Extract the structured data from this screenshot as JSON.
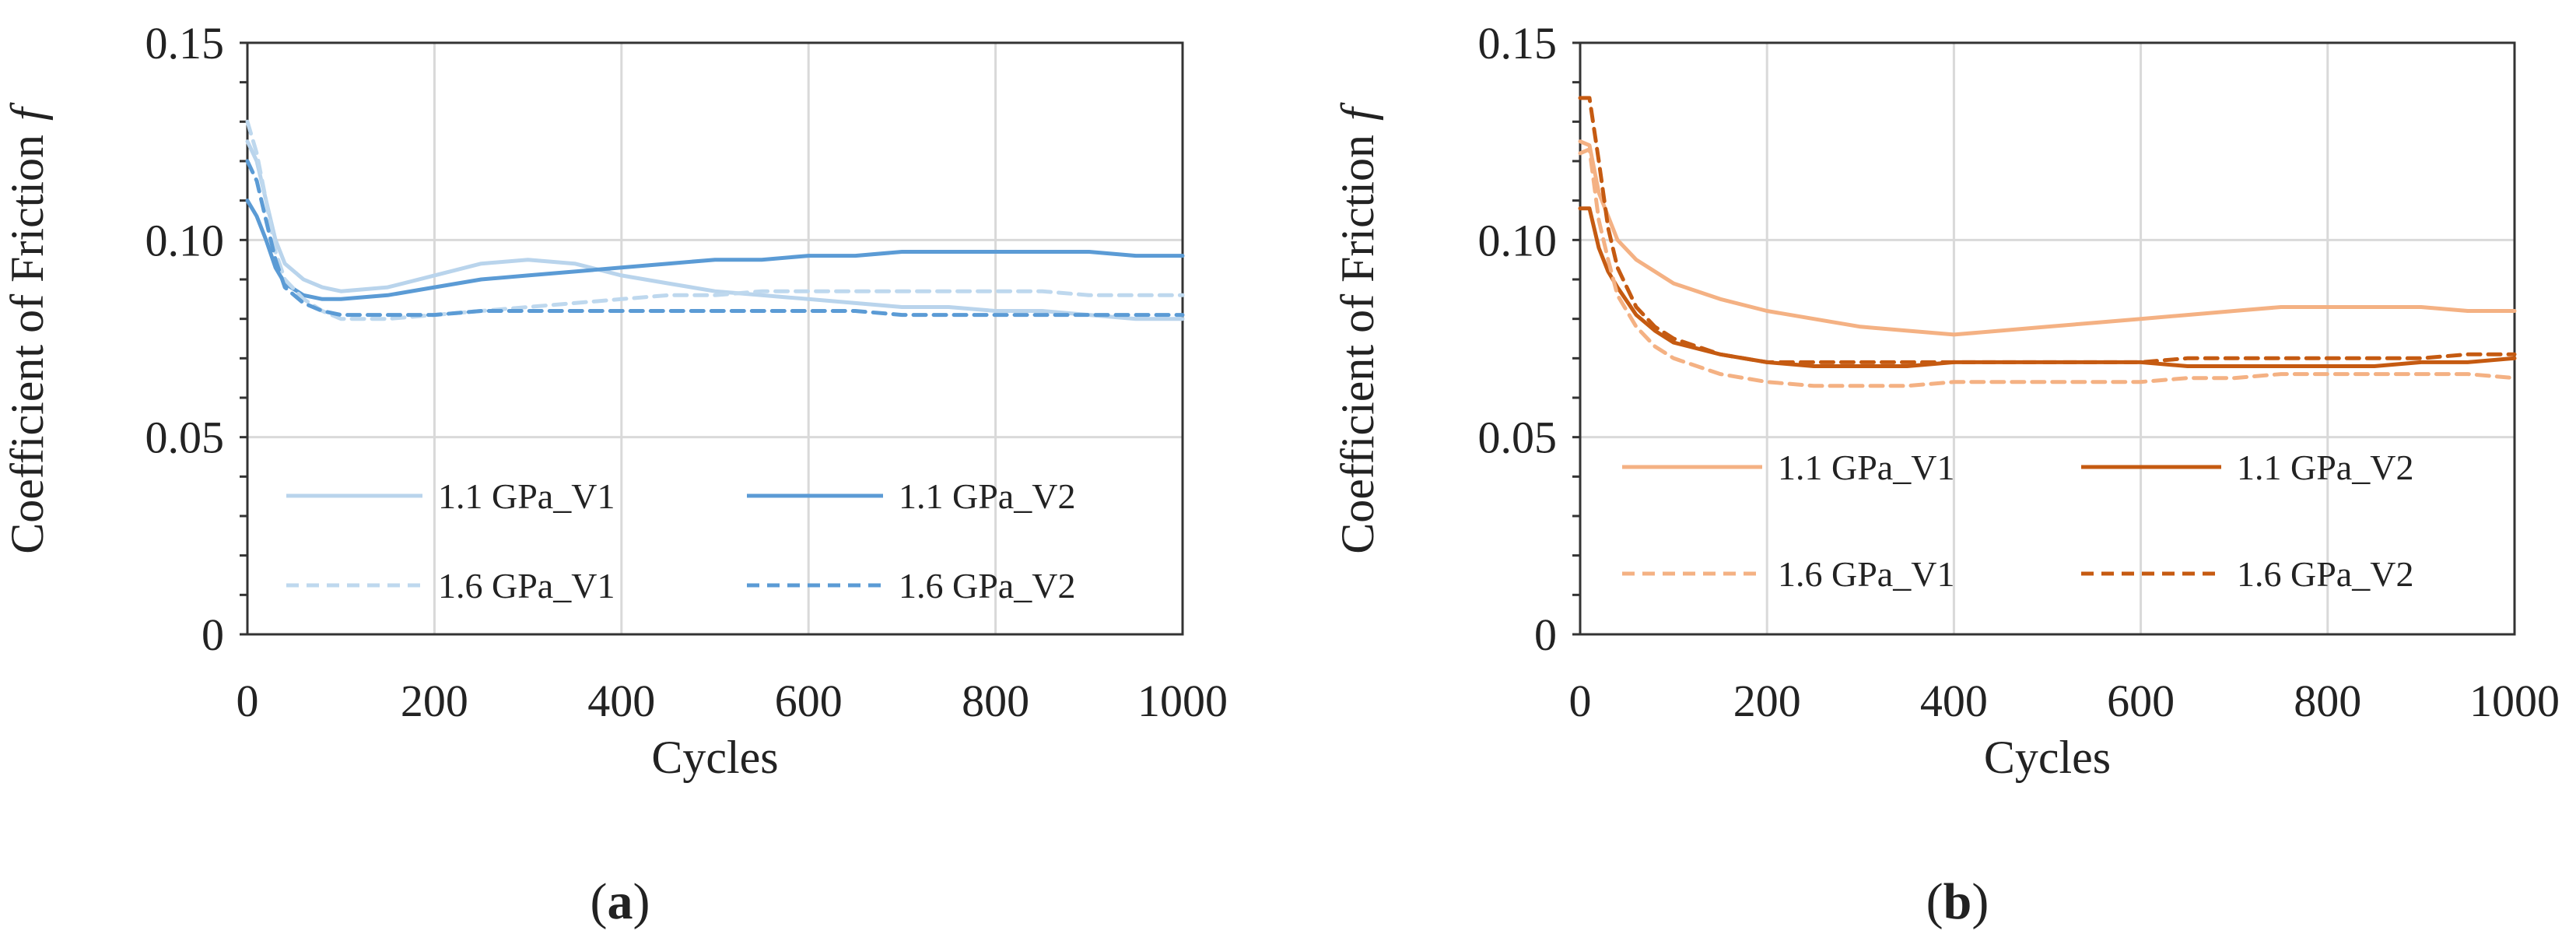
{
  "chart_data": [
    {
      "type": "line",
      "panel_label": "a",
      "xlabel": "Cycles",
      "ylabel": "Coefficient of Friction",
      "ylabel_symbol": "f",
      "xlim": [
        0,
        1000
      ],
      "ylim": [
        0,
        0.15
      ],
      "xticks": [
        "0",
        "200",
        "400",
        "600",
        "800",
        "1000"
      ],
      "xtick_values": [
        0,
        200,
        400,
        600,
        800,
        1000
      ],
      "yticks": [
        "0",
        "0.05",
        "0.10",
        "0.15"
      ],
      "ytick_values": [
        0,
        0.05,
        0.1,
        0.15
      ],
      "grid": true,
      "legend_position": "lower-center",
      "series": [
        {
          "name": "1.1 GPa_V1",
          "color": "#b9d4ec",
          "dash": "solid",
          "x": [
            0,
            10,
            20,
            30,
            40,
            60,
            80,
            100,
            150,
            200,
            250,
            300,
            350,
            400,
            450,
            500,
            550,
            600,
            650,
            700,
            750,
            800,
            850,
            900,
            950,
            1000
          ],
          "y": [
            0.125,
            0.12,
            0.11,
            0.1,
            0.094,
            0.09,
            0.088,
            0.087,
            0.088,
            0.091,
            0.094,
            0.095,
            0.094,
            0.091,
            0.089,
            0.087,
            0.086,
            0.085,
            0.084,
            0.083,
            0.083,
            0.082,
            0.082,
            0.081,
            0.08,
            0.08
          ]
        },
        {
          "name": "1.1 GPa_V2",
          "color": "#5b9bd5",
          "dash": "solid",
          "x": [
            0,
            10,
            20,
            30,
            40,
            60,
            80,
            100,
            150,
            200,
            250,
            300,
            350,
            400,
            450,
            500,
            550,
            600,
            650,
            700,
            750,
            800,
            850,
            900,
            950,
            1000
          ],
          "y": [
            0.11,
            0.106,
            0.1,
            0.093,
            0.089,
            0.086,
            0.085,
            0.085,
            0.086,
            0.088,
            0.09,
            0.091,
            0.092,
            0.093,
            0.094,
            0.095,
            0.095,
            0.096,
            0.096,
            0.097,
            0.097,
            0.097,
            0.097,
            0.097,
            0.096,
            0.096
          ]
        },
        {
          "name": "1.6 GPa_V1",
          "color": "#bed8ee",
          "dash": "dashed",
          "x": [
            0,
            10,
            20,
            30,
            40,
            60,
            80,
            100,
            150,
            200,
            250,
            300,
            350,
            400,
            450,
            500,
            550,
            600,
            650,
            700,
            750,
            800,
            850,
            900,
            950,
            1000
          ],
          "y": [
            0.13,
            0.122,
            0.11,
            0.097,
            0.09,
            0.085,
            0.082,
            0.08,
            0.08,
            0.081,
            0.082,
            0.083,
            0.084,
            0.085,
            0.086,
            0.086,
            0.087,
            0.087,
            0.087,
            0.087,
            0.087,
            0.087,
            0.087,
            0.086,
            0.086,
            0.086
          ]
        },
        {
          "name": "1.6 GPa_V2",
          "color": "#5b9bd5",
          "dash": "dashed",
          "x": [
            0,
            10,
            20,
            30,
            40,
            60,
            80,
            100,
            150,
            200,
            250,
            300,
            350,
            400,
            450,
            500,
            550,
            600,
            650,
            700,
            750,
            800,
            850,
            900,
            950,
            1000
          ],
          "y": [
            0.12,
            0.115,
            0.105,
            0.095,
            0.088,
            0.084,
            0.082,
            0.081,
            0.081,
            0.081,
            0.082,
            0.082,
            0.082,
            0.082,
            0.082,
            0.082,
            0.082,
            0.082,
            0.082,
            0.081,
            0.081,
            0.081,
            0.081,
            0.081,
            0.081,
            0.081
          ]
        }
      ]
    },
    {
      "type": "line",
      "panel_label": "b",
      "xlabel": "Cycles",
      "ylabel": "Coefficient of Friction",
      "ylabel_symbol": "f",
      "xlim": [
        0,
        1000
      ],
      "ylim": [
        0,
        0.15
      ],
      "xticks": [
        "0",
        "200",
        "400",
        "600",
        "800",
        "1000"
      ],
      "xtick_values": [
        0,
        200,
        400,
        600,
        800,
        1000
      ],
      "yticks": [
        "0",
        "0.05",
        "0.10",
        "0.15"
      ],
      "ytick_values": [
        0,
        0.05,
        0.1,
        0.15
      ],
      "grid": true,
      "legend_position": "lower-center",
      "series": [
        {
          "name": "1.1 GPa_V1",
          "color": "#f4b183",
          "dash": "solid",
          "x": [
            0,
            10,
            20,
            30,
            40,
            60,
            80,
            100,
            150,
            200,
            250,
            300,
            350,
            400,
            450,
            500,
            550,
            600,
            650,
            700,
            750,
            800,
            850,
            900,
            950,
            1000
          ],
          "y": [
            0.125,
            0.124,
            0.112,
            0.106,
            0.1,
            0.095,
            0.092,
            0.089,
            0.085,
            0.082,
            0.08,
            0.078,
            0.077,
            0.076,
            0.077,
            0.078,
            0.079,
            0.08,
            0.081,
            0.082,
            0.083,
            0.083,
            0.083,
            0.083,
            0.082,
            0.082
          ]
        },
        {
          "name": "1.1 GPa_V2",
          "color": "#c55a11",
          "dash": "solid",
          "x": [
            0,
            10,
            20,
            30,
            40,
            60,
            80,
            100,
            150,
            200,
            250,
            300,
            350,
            400,
            450,
            500,
            550,
            600,
            650,
            700,
            750,
            800,
            850,
            900,
            950,
            1000
          ],
          "y": [
            0.108,
            0.108,
            0.098,
            0.092,
            0.088,
            0.081,
            0.077,
            0.074,
            0.071,
            0.069,
            0.068,
            0.068,
            0.068,
            0.069,
            0.069,
            0.069,
            0.069,
            0.069,
            0.068,
            0.068,
            0.068,
            0.068,
            0.068,
            0.069,
            0.069,
            0.07
          ]
        },
        {
          "name": "1.6 GPa_V1",
          "color": "#f4b183",
          "dash": "dashed",
          "x": [
            0,
            10,
            20,
            30,
            40,
            60,
            80,
            100,
            150,
            200,
            250,
            300,
            350,
            400,
            450,
            500,
            550,
            600,
            650,
            700,
            750,
            800,
            850,
            900,
            950,
            1000
          ],
          "y": [
            0.122,
            0.123,
            0.105,
            0.095,
            0.086,
            0.078,
            0.073,
            0.07,
            0.066,
            0.064,
            0.063,
            0.063,
            0.063,
            0.064,
            0.064,
            0.064,
            0.064,
            0.064,
            0.065,
            0.065,
            0.066,
            0.066,
            0.066,
            0.066,
            0.066,
            0.065
          ]
        },
        {
          "name": "1.6 GPa_V2",
          "color": "#c55a11",
          "dash": "dashed",
          "x": [
            0,
            10,
            20,
            30,
            40,
            60,
            80,
            100,
            150,
            200,
            250,
            300,
            350,
            400,
            450,
            500,
            550,
            600,
            650,
            700,
            750,
            800,
            850,
            900,
            950,
            1000
          ],
          "y": [
            0.136,
            0.136,
            0.12,
            0.103,
            0.093,
            0.083,
            0.078,
            0.075,
            0.071,
            0.069,
            0.069,
            0.069,
            0.069,
            0.069,
            0.069,
            0.069,
            0.069,
            0.069,
            0.07,
            0.07,
            0.07,
            0.07,
            0.07,
            0.07,
            0.071,
            0.071
          ]
        }
      ]
    }
  ]
}
